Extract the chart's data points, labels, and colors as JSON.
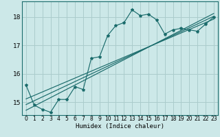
{
  "xlabel": "Humidex (Indice chaleur)",
  "bg_color": "#cce8e8",
  "grid_color": "#aacccc",
  "line_color": "#1a6b6b",
  "xlim": [
    -0.5,
    23.5
  ],
  "ylim": [
    14.55,
    18.55
  ],
  "xticks": [
    0,
    1,
    2,
    3,
    4,
    5,
    6,
    7,
    8,
    9,
    10,
    11,
    12,
    13,
    14,
    15,
    16,
    17,
    18,
    19,
    20,
    21,
    22,
    23
  ],
  "yticks": [
    15,
    16,
    17,
    18
  ],
  "data_line": [
    [
      0,
      15.6
    ],
    [
      1,
      14.9
    ],
    [
      2,
      14.75
    ],
    [
      3,
      14.65
    ],
    [
      4,
      15.1
    ],
    [
      5,
      15.1
    ],
    [
      6,
      15.55
    ],
    [
      7,
      15.45
    ],
    [
      8,
      16.55
    ],
    [
      9,
      16.6
    ],
    [
      10,
      17.35
    ],
    [
      11,
      17.7
    ],
    [
      12,
      17.8
    ],
    [
      13,
      18.25
    ],
    [
      14,
      18.05
    ],
    [
      15,
      18.1
    ],
    [
      16,
      17.9
    ],
    [
      17,
      17.4
    ],
    [
      18,
      17.55
    ],
    [
      19,
      17.6
    ],
    [
      20,
      17.55
    ],
    [
      21,
      17.5
    ],
    [
      22,
      17.75
    ],
    [
      23,
      18.0
    ]
  ],
  "regression_lines": [
    {
      "slope": 0.148,
      "intercept": 14.72
    },
    {
      "slope": 0.135,
      "intercept": 14.92
    },
    {
      "slope": 0.122,
      "intercept": 15.12
    }
  ]
}
